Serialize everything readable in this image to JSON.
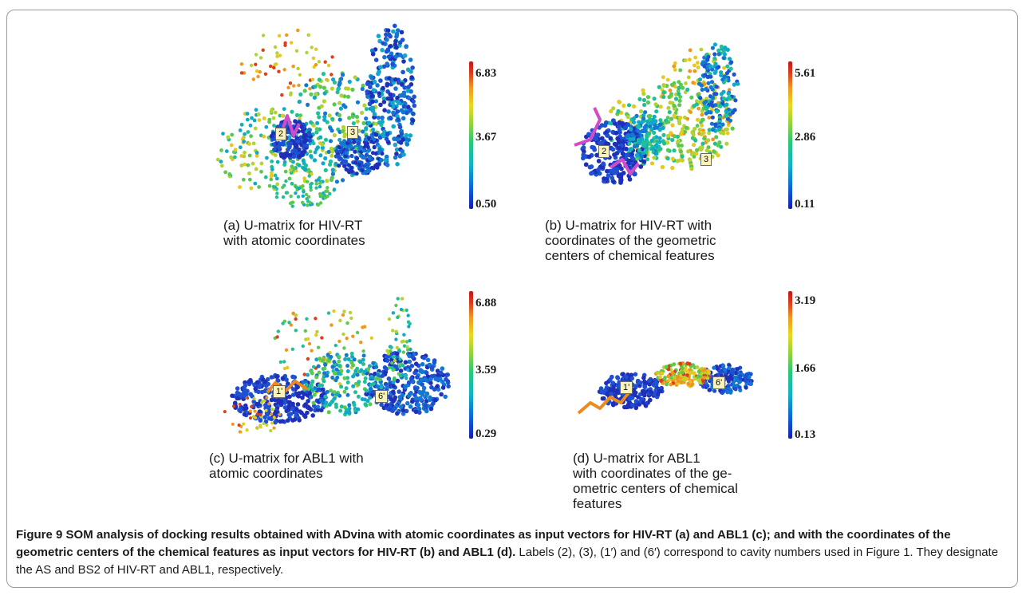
{
  "panels": [
    {
      "id": "a",
      "caption_lines": [
        "(a) U-matrix for HIV-RT",
        "with atomic coordinates"
      ],
      "colorbar": {
        "max": "6.83",
        "mid": "3.67",
        "min": "0.50"
      },
      "labels": [
        "2",
        "3"
      ]
    },
    {
      "id": "b",
      "caption_lines": [
        "(b) U-matrix for HIV-RT with",
        "coordinates of the geometric",
        "centers of chemical features"
      ],
      "colorbar": {
        "max": "5.61",
        "mid": "2.86",
        "min": "0.11"
      },
      "labels": [
        "2",
        "3"
      ]
    },
    {
      "id": "c",
      "caption_lines": [
        "(c) U-matrix for ABL1 with",
        "atomic coordinates"
      ],
      "colorbar": {
        "max": "6.88",
        "mid": "3.59",
        "min": "0.29"
      },
      "labels": [
        "1'",
        "6'"
      ]
    },
    {
      "id": "d",
      "caption_lines": [
        "(d) U-matrix for ABL1",
        "with coordinates of the ge-",
        "ometric centers of chemical",
        "features"
      ],
      "colorbar": {
        "max": "3.19",
        "mid": "1.66",
        "min": "0.13"
      },
      "labels": [
        "1'",
        "6'"
      ]
    }
  ],
  "figure_caption": {
    "label": "Figure 9",
    "bold_text": "SOM analysis of docking results obtained with ADvina with atomic coordinates as input vectors for HIV-RT (a) and ABL1 (c); and with the coordinates of the geometric centers of the chemical features as input vectors for HIV-RT (b) and ABL1 (d).",
    "text": "Labels (2), (3), (1′) and (6′) correspond to cavity numbers used in Figure 1. They designate the AS and BS2 of HIV-RT and ABL1, respectively."
  }
}
